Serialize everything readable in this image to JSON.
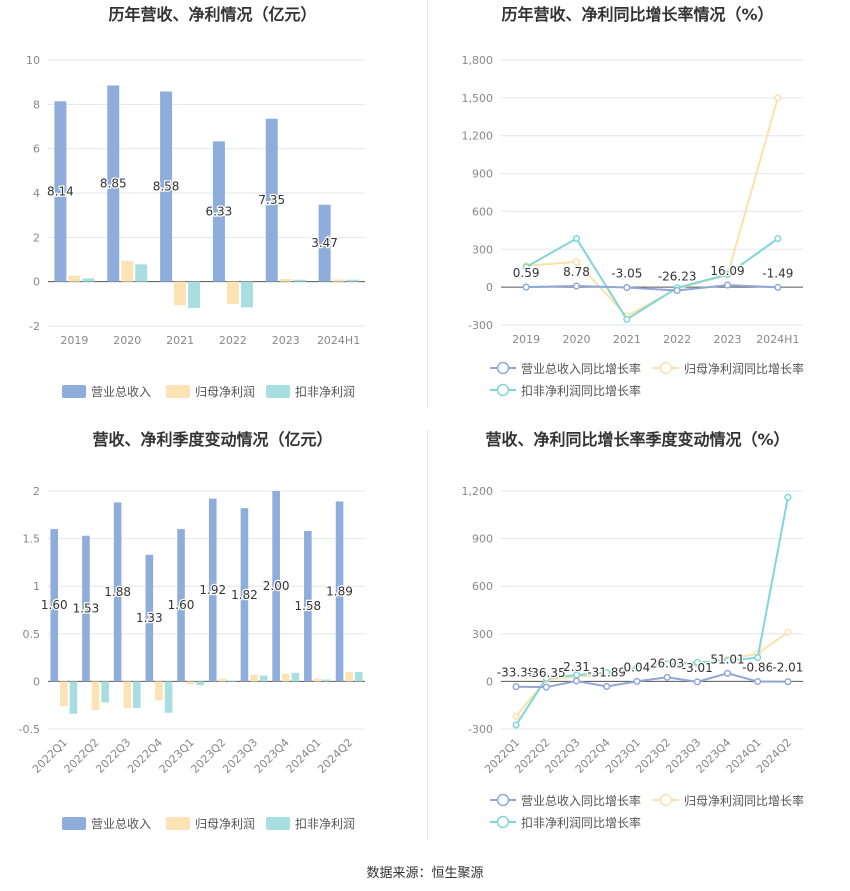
{
  "colors": {
    "revenue": "#8FADDA",
    "net_profit": "#FCE3B3",
    "deducted_profit": "#A8DEDF",
    "revenue_line": "#8FA7D6",
    "net_profit_line": "#FCE1A8",
    "deducted_line": "#7FD6D8",
    "grid": "#E3E6EE",
    "axis_text": "#888888"
  },
  "footer": {
    "source_label": "数据来源：恒生聚源"
  },
  "chart_data": [
    {
      "id": "annual_values",
      "type": "bar",
      "title": "历年营收、净利情况（亿元）",
      "categories": [
        "2019",
        "2020",
        "2021",
        "2022",
        "2023",
        "2024H1"
      ],
      "ylim": [
        -2,
        10
      ],
      "yticks": [
        "-2",
        "0",
        "2",
        "4",
        "6",
        "8",
        "10"
      ],
      "grid": true,
      "legend_position": "bottom",
      "series": [
        {
          "name": "营业总收入",
          "values": [
            8.14,
            8.85,
            8.58,
            6.33,
            7.35,
            3.47
          ],
          "labels": [
            "8.14",
            "8.85",
            "8.58",
            "6.33",
            "7.35",
            "3.47"
          ]
        },
        {
          "name": "归母净利润",
          "values": [
            0.28,
            0.93,
            -1.06,
            -1.01,
            0.12,
            0.1
          ]
        },
        {
          "name": "扣非净利润",
          "values": [
            0.15,
            0.78,
            -1.19,
            -1.16,
            0.09,
            0.09
          ]
        }
      ]
    },
    {
      "id": "annual_growth",
      "type": "line",
      "title": "历年营收、净利同比增长率情况（%）",
      "categories": [
        "2019",
        "2020",
        "2021",
        "2022",
        "2023",
        "2024H1"
      ],
      "ylim": [
        -300,
        1800
      ],
      "yticks": [
        "-300",
        "0",
        "300",
        "600",
        "900",
        "1,200",
        "1,500",
        "1,800"
      ],
      "grid": true,
      "legend_position": "bottom",
      "series": [
        {
          "name": "营业总收入同比增长率",
          "values": [
            0.59,
            8.78,
            -3.05,
            -26.23,
            16.09,
            -1.49
          ],
          "labels": [
            "0.59",
            "8.78",
            "-3.05",
            "-26.23",
            "16.09",
            "-1.49"
          ]
        },
        {
          "name": "归母净利润同比增长率",
          "values": [
            170,
            200,
            -230,
            -10,
            95,
            1500
          ]
        },
        {
          "name": "扣非净利润同比增长率",
          "values": [
            160,
            385,
            -255,
            -5,
            100,
            385
          ]
        }
      ]
    },
    {
      "id": "quarterly_values",
      "type": "bar",
      "title": "营收、净利季度变动情况（亿元）",
      "categories": [
        "2022Q1",
        "2022Q2",
        "2022Q3",
        "2022Q4",
        "2023Q1",
        "2023Q2",
        "2023Q3",
        "2023Q4",
        "2024Q1",
        "2024Q2"
      ],
      "ylim": [
        -0.5,
        2
      ],
      "yticks": [
        "-0.5",
        "0",
        "0.5",
        "1",
        "1.5",
        "2"
      ],
      "grid": true,
      "legend_position": "bottom",
      "series": [
        {
          "name": "营业总收入",
          "values": [
            1.6,
            1.53,
            1.88,
            1.33,
            1.6,
            1.92,
            1.82,
            2.0,
            1.58,
            1.89
          ],
          "labels": [
            "1.60",
            "1.53",
            "1.88",
            "1.33",
            "1.60",
            "1.92",
            "1.82",
            "2.00",
            "1.58",
            "1.89"
          ]
        },
        {
          "name": "归母净利润",
          "values": [
            -0.26,
            -0.3,
            -0.28,
            -0.2,
            -0.03,
            0.03,
            0.07,
            0.08,
            0.03,
            0.1
          ]
        },
        {
          "name": "扣非净利润",
          "values": [
            -0.34,
            -0.22,
            -0.28,
            -0.33,
            -0.04,
            0.01,
            0.06,
            0.09,
            0.02,
            0.1
          ]
        }
      ]
    },
    {
      "id": "quarterly_growth",
      "type": "line",
      "title": "营收、净利同比增长率季度变动情况（%）",
      "categories": [
        "2022Q1",
        "2022Q2",
        "2022Q3",
        "2022Q4",
        "2023Q1",
        "2023Q2",
        "2023Q3",
        "2023Q4",
        "2024Q1",
        "2024Q2"
      ],
      "ylim": [
        -300,
        1200
      ],
      "yticks": [
        "-300",
        "0",
        "300",
        "600",
        "900",
        "1,200"
      ],
      "grid": true,
      "legend_position": "bottom",
      "series": [
        {
          "name": "营业总收入同比增长率",
          "values": [
            -33.38,
            -36.35,
            2.31,
            -31.89,
            0.04,
            26.03,
            -3.01,
            51.01,
            -0.86,
            -2.01
          ],
          "labels": [
            "-33.38",
            "-36.35",
            "2.31",
            "-31.89",
            "0.04",
            "26.03",
            "-3.01",
            "51.01",
            "-0.86",
            "-2.01"
          ]
        },
        {
          "name": "归母净利润同比增长率",
          "values": [
            -220,
            10,
            30,
            45,
            80,
            100,
            110,
            140,
            175,
            310
          ]
        },
        {
          "name": "扣非净利润同比增长率",
          "values": [
            -275,
            20,
            40,
            55,
            85,
            110,
            120,
            130,
            150,
            1160
          ]
        }
      ]
    }
  ]
}
